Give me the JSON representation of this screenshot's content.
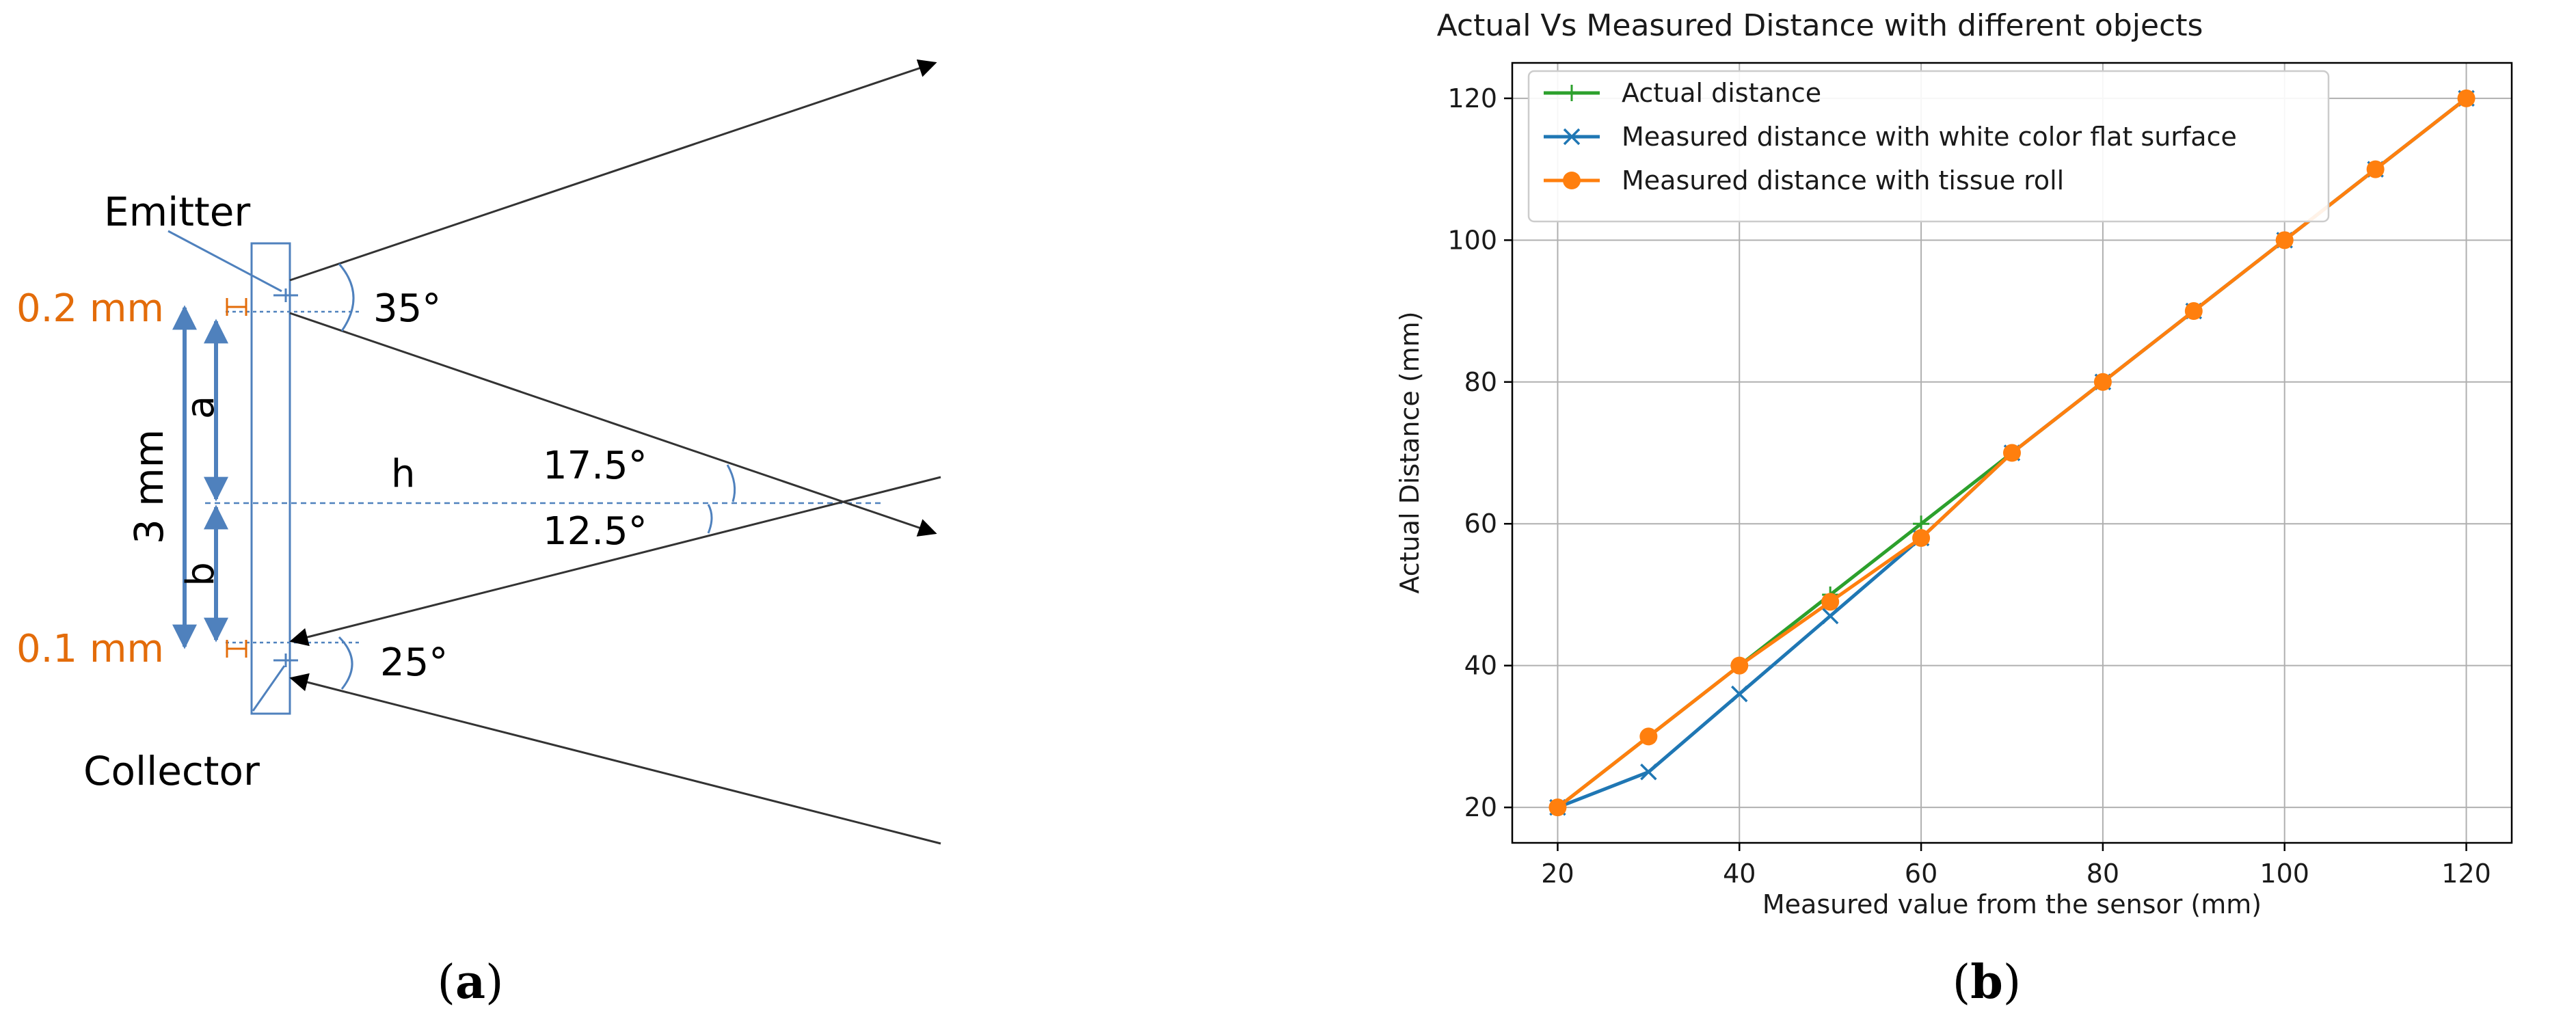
{
  "panel_a": {
    "caption_open": "(",
    "caption_letter": "a",
    "caption_close": ")",
    "emitter_label": "Emitter",
    "collector_label": "Collector",
    "emitter_size": "0.2 mm",
    "collector_size": "0.1 mm",
    "separation": "3 mm",
    "label_a": "a",
    "label_b": "b",
    "label_h": "h",
    "emitter_angle": "35°",
    "collector_angle": "25°",
    "upper_half_angle": "17.5°",
    "lower_half_angle": "12.5°"
  },
  "panel_b": {
    "caption_open": "(",
    "caption_letter": "b",
    "caption_close": ")"
  },
  "colors": {
    "actual": "#2ca02c",
    "white_surface": "#1f77b4",
    "tissue_roll": "#ff7f0e",
    "diagram_blue": "#4F81BD",
    "diagram_orange": "#E36C0A"
  },
  "chart_data": {
    "type": "line",
    "title": "Actual Vs Measured Distance with different objects",
    "xlabel": "Measured value from the sensor (mm)",
    "ylabel": "Actual Distance (mm)",
    "xlim": [
      15,
      125
    ],
    "ylim": [
      15,
      125
    ],
    "xticks": [
      20,
      40,
      60,
      80,
      100,
      120
    ],
    "yticks": [
      20,
      40,
      60,
      80,
      100,
      120
    ],
    "grid": true,
    "legend_position": "top-left",
    "series": [
      {
        "name": "Actual distance",
        "marker": "plus",
        "color": "#2ca02c",
        "x": [
          20,
          30,
          40,
          50,
          60,
          70,
          80,
          90,
          100,
          110,
          120
        ],
        "y": [
          20,
          30,
          40,
          50,
          60,
          70,
          80,
          90,
          100,
          110,
          120
        ]
      },
      {
        "name": "Measured distance with white color flat surface",
        "marker": "x",
        "color": "#1f77b4",
        "x": [
          20,
          30,
          40,
          50,
          60,
          70,
          80,
          90,
          100,
          110,
          120
        ],
        "y": [
          20,
          25,
          36,
          47,
          58,
          70,
          80,
          90,
          100,
          110,
          120
        ]
      },
      {
        "name": "Measured distance with tissue roll",
        "marker": "circle",
        "color": "#ff7f0e",
        "x": [
          20,
          30,
          40,
          50,
          60,
          70,
          80,
          90,
          100,
          110,
          120
        ],
        "y": [
          20,
          30,
          40,
          49,
          58,
          70,
          80,
          90,
          100,
          110,
          120
        ]
      }
    ]
  }
}
